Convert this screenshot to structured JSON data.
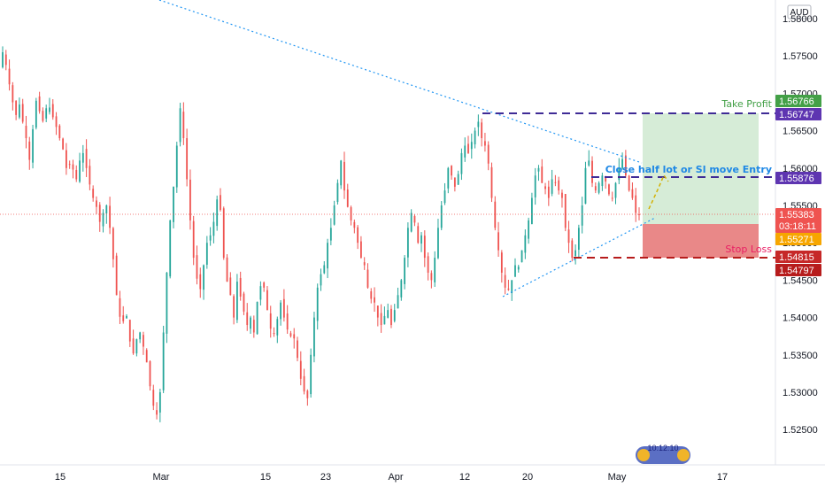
{
  "chart_data": {
    "type": "candlestick",
    "currency": "AUD",
    "y_axis": {
      "ticks": [
        1.58,
        1.575,
        1.57,
        1.565,
        1.56,
        1.555,
        1.55,
        1.545,
        1.54,
        1.535,
        1.53,
        1.525
      ],
      "tick_labels": [
        "1.58000",
        "1.57500",
        "1.57000",
        "1.56500",
        "1.56000",
        "1.55500",
        "1.55000",
        "1.54500",
        "1.54000",
        "1.53500",
        "1.53000",
        "1.52500"
      ],
      "ylim": [
        1.5205,
        1.5815
      ]
    },
    "x_axis": {
      "tick_labels": [
        "15",
        "Mar",
        "15",
        "23",
        "Apr",
        "12",
        "20",
        "May",
        "17"
      ]
    },
    "price_badges": [
      {
        "label": "Take Profit level",
        "value": "1.56766",
        "color": "#43a047"
      },
      {
        "label": "upper line",
        "value": "1.56747",
        "color": "#5e35b1"
      },
      {
        "label": "entry line",
        "value": "1.55876",
        "color": "#5e35b1"
      },
      {
        "label": "current price",
        "value": "1.55383",
        "sub": "03:18:11",
        "color": "#ef5350"
      },
      {
        "label": "entry",
        "value": "1.55271",
        "color": "#f7a600"
      },
      {
        "label": "stop",
        "value": "1.54815",
        "color": "#c62828"
      },
      {
        "label": "stop line",
        "value": "1.54797",
        "color": "#b71c1c"
      }
    ],
    "annotations": {
      "take_profit": "Take Profit",
      "close_half": "Close half lot or Sl move Entry",
      "stop_loss": "Stop Loss",
      "logo_text": "10:12:10"
    },
    "colors": {
      "up": "#26a69a",
      "down": "#ef5350",
      "trend": "#2196f3",
      "dash": "#3f2b96",
      "stopline": "#b71c1c",
      "profit_zone": "#c8e6c9",
      "loss_zone": "#e57373"
    },
    "candles_close": [
      1.5755,
      1.5738,
      1.5712,
      1.5688,
      1.5671,
      1.5685,
      1.5662,
      1.564,
      1.5611,
      1.5652,
      1.569,
      1.5676,
      1.5663,
      1.568,
      1.5681,
      1.5668,
      1.5655,
      1.564,
      1.5625,
      1.56,
      1.5605,
      1.5598,
      1.5585,
      1.561,
      1.562,
      1.56,
      1.5578,
      1.556,
      1.5548,
      1.5528,
      1.554,
      1.555,
      1.552,
      1.5478,
      1.543,
      1.5401,
      1.5395,
      1.5402,
      1.5368,
      1.5352,
      1.5371,
      1.538,
      1.5361,
      1.534,
      1.5308,
      1.5282,
      1.527,
      1.53,
      1.538,
      1.546,
      1.553,
      1.5575,
      1.563,
      1.568,
      1.564,
      1.5585,
      1.553,
      1.548,
      1.5452,
      1.5438,
      1.547,
      1.55,
      1.551,
      1.5528,
      1.5558,
      1.5544,
      1.548,
      1.5448,
      1.543,
      1.54,
      1.5448,
      1.5428,
      1.5408,
      1.539,
      1.54,
      1.538,
      1.5421,
      1.5442,
      1.544,
      1.541,
      1.5385,
      1.5378,
      1.5398,
      1.542,
      1.54,
      1.5384,
      1.5375,
      1.5372,
      1.5346,
      1.5318,
      1.5301,
      1.5292,
      1.535,
      1.54,
      1.544,
      1.5458,
      1.547,
      1.55,
      1.552,
      1.555,
      1.558,
      1.561,
      1.557,
      1.5548,
      1.553,
      1.552,
      1.55,
      1.548,
      1.547,
      1.544,
      1.5425,
      1.542,
      1.54,
      1.539,
      1.5402,
      1.541,
      1.539,
      1.541,
      1.543,
      1.545,
      1.548,
      1.552,
      1.554,
      1.5527,
      1.55,
      1.551,
      1.548,
      1.546,
      1.545,
      1.548,
      1.552,
      1.555,
      1.557,
      1.56,
      1.559,
      1.5575,
      1.5592,
      1.562,
      1.563,
      1.562,
      1.5635,
      1.565,
      1.5662,
      1.564,
      1.563,
      1.5606,
      1.556,
      1.552,
      1.549,
      1.546,
      1.544,
      1.5437,
      1.545,
      1.547,
      1.5468,
      1.549,
      1.551,
      1.553,
      1.556,
      1.559,
      1.56,
      1.558,
      1.5572,
      1.556,
      1.5585,
      1.558,
      1.557,
      1.556,
      1.552,
      1.55,
      1.548,
      1.549,
      1.552,
      1.555,
      1.56,
      1.561,
      1.558,
      1.557,
      1.558,
      1.559,
      1.5582,
      1.5565,
      1.556,
      1.558,
      1.56,
      1.5612,
      1.559,
      1.557,
      1.556,
      1.554,
      1.5538
    ]
  }
}
